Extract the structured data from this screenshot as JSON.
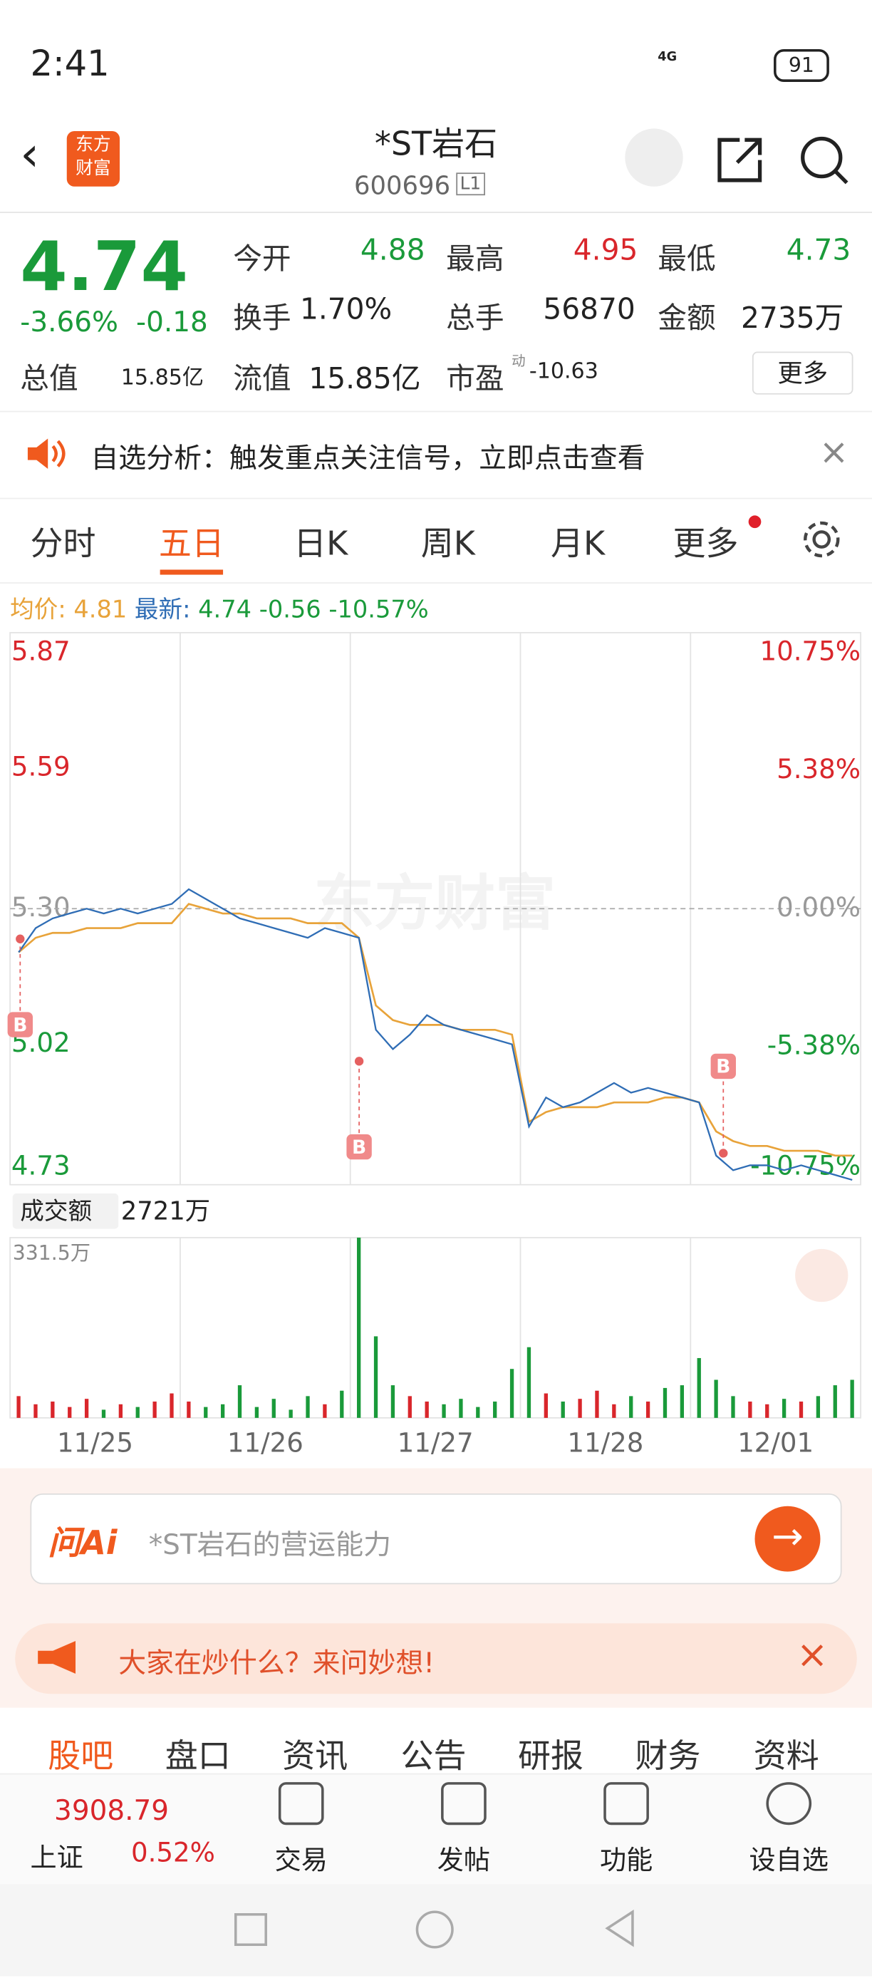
{
  "status_bar": {
    "time": "2:41",
    "network": "4G",
    "battery": "91"
  },
  "header": {
    "logo": [
      "东方",
      "财富"
    ],
    "title": "*ST岩石",
    "code": "600696",
    "level": "L1"
  },
  "quote": {
    "price": "4.74",
    "change_pct": "-3.66%",
    "change": "-0.18",
    "fields": [
      {
        "label": "今开",
        "value": "4.88"
      },
      {
        "label": "最高",
        "value": "4.95"
      },
      {
        "label": "最低",
        "value": "4.73"
      },
      {
        "label": "换手",
        "value": "1.70%"
      },
      {
        "label": "总手",
        "value": "56870"
      },
      {
        "label": "金额",
        "value": "2735万"
      },
      {
        "label": "总值",
        "value": "15.85亿"
      },
      {
        "label": "流值",
        "value": "15.85亿"
      },
      {
        "label": "市盈",
        "value": "-10.63"
      }
    ],
    "pe_note": "动",
    "more": "更多"
  },
  "banner": {
    "text": "自选分析：触发重点关注信号，立即点击查看"
  },
  "tabs": [
    "分时",
    "五日",
    "日K",
    "周K",
    "月K",
    "更多"
  ],
  "chart_data": {
    "type": "line",
    "summary": {
      "avg_label": "均价:",
      "avg_value": "4.81",
      "last_label": "最新:",
      "last_value": "4.74",
      "change": "-0.56",
      "change_pct": "-10.57%"
    },
    "watermark": "东方财富",
    "x": [
      0.05,
      0.15,
      0.25,
      0.35,
      0.45,
      0.55,
      0.65,
      0.75,
      0.85,
      0.95,
      1.05,
      1.15,
      1.25,
      1.35,
      1.45,
      1.55,
      1.65,
      1.75,
      1.85,
      1.95,
      2.05,
      2.15,
      2.25,
      2.35,
      2.45,
      2.55,
      2.65,
      2.75,
      2.85,
      2.95,
      3.05,
      3.15,
      3.25,
      3.35,
      3.45,
      3.55,
      3.65,
      3.75,
      3.85,
      3.95,
      4.05,
      4.15,
      4.25,
      4.35,
      4.45,
      4.55,
      4.65,
      4.75,
      4.85,
      4.95
    ],
    "xlim": [
      0,
      5
    ],
    "xticks": [
      {
        "value": 0.5,
        "label": "11/25"
      },
      {
        "value": 1.5,
        "label": "11/26"
      },
      {
        "value": 2.5,
        "label": "11/27"
      },
      {
        "value": 3.5,
        "label": "11/28"
      },
      {
        "value": 4.5,
        "label": "12/01"
      }
    ],
    "series": [
      {
        "color": "#2f6db5",
        "values": [
          5.21,
          5.26,
          5.28,
          5.29,
          5.3,
          5.29,
          5.3,
          5.29,
          5.3,
          5.31,
          5.34,
          5.32,
          5.3,
          5.28,
          5.27,
          5.26,
          5.25,
          5.24,
          5.26,
          5.25,
          5.24,
          5.05,
          5.01,
          5.04,
          5.08,
          5.06,
          5.05,
          5.04,
          5.03,
          5.02,
          4.85,
          4.91,
          4.89,
          4.9,
          4.92,
          4.94,
          4.92,
          4.93,
          4.92,
          4.91,
          4.9,
          4.79,
          4.76,
          4.77,
          4.77,
          4.76,
          4.77,
          4.76,
          4.75,
          4.74
        ]
      },
      {
        "color": "#e8a33a",
        "values": [
          5.21,
          5.24,
          5.25,
          5.25,
          5.26,
          5.26,
          5.26,
          5.27,
          5.27,
          5.27,
          5.31,
          5.3,
          5.29,
          5.29,
          5.28,
          5.28,
          5.28,
          5.27,
          5.27,
          5.27,
          5.24,
          5.1,
          5.07,
          5.06,
          5.06,
          5.06,
          5.05,
          5.05,
          5.05,
          5.04,
          4.86,
          4.88,
          4.89,
          4.89,
          4.89,
          4.9,
          4.9,
          4.9,
          4.91,
          4.91,
          4.9,
          4.84,
          4.82,
          4.81,
          4.81,
          4.8,
          4.8,
          4.8,
          4.79,
          4.79
        ]
      }
    ],
    "ylim": [
      4.73,
      5.87
    ],
    "yticks": [
      5.87,
      5.59,
      {
        "value": 5.3,
        "label": "5.30"
      },
      5.02,
      4.73
    ],
    "y2lim": [
      -10.75,
      10.75
    ],
    "y2ticks": [
      {
        "value": 10.75,
        "label": "10.75%"
      },
      {
        "value": 5.38,
        "label": "5.38%"
      },
      {
        "value": 0,
        "label": "0.00%"
      },
      {
        "value": -5.38,
        "label": "-5.38%"
      },
      {
        "value": -10.75,
        "label": "-10.75%"
      }
    ],
    "annotations": [
      "B",
      "B",
      "B"
    ],
    "volume": {
      "label": "成交额",
      "total": "2721万",
      "ylim": [
        0,
        331.5
      ],
      "yticks": [
        {
          "value": 331.5,
          "label": "331.5万"
        }
      ],
      "up_color": "#d9262b",
      "down_color": "#1a9a3a",
      "values": [
        40,
        25,
        30,
        20,
        35,
        15,
        25,
        20,
        30,
        45,
        30,
        20,
        25,
        60,
        20,
        35,
        15,
        40,
        25,
        50,
        331.5,
        150,
        60,
        40,
        30,
        25,
        35,
        20,
        30,
        90,
        130,
        45,
        30,
        35,
        50,
        25,
        40,
        30,
        55,
        60,
        110,
        70,
        40,
        30,
        25,
        35,
        30,
        40,
        60,
        70
      ]
    }
  },
  "ai_box": {
    "brand": "问Ai",
    "placeholder": "*ST岩石的营运能力"
  },
  "promo": {
    "text": "大家在炒什么？来问妙想!"
  },
  "sub_tabs": [
    "股吧",
    "盘口",
    "资讯",
    "公告",
    "研报",
    "财务",
    "资料"
  ],
  "bottom_bar": {
    "index_name": "上证",
    "index_value": "3908.79",
    "index_change": "0.52%",
    "items": [
      "交易",
      "发帖",
      "功能",
      "设自选"
    ]
  }
}
